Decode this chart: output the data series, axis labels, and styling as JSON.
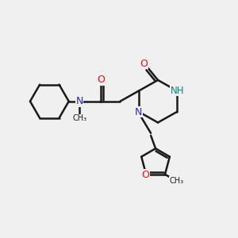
{
  "bg_color": "#f0f0f0",
  "bond_color": "#1a1a1a",
  "N_color": "#2424ee",
  "O_color": "#ee1111",
  "NH_color": "#1a7a7a",
  "lw": 1.8,
  "figsize": [
    3.0,
    3.0
  ],
  "dpi": 100,
  "xlim": [
    0,
    10
  ],
  "ylim": [
    0,
    10
  ]
}
